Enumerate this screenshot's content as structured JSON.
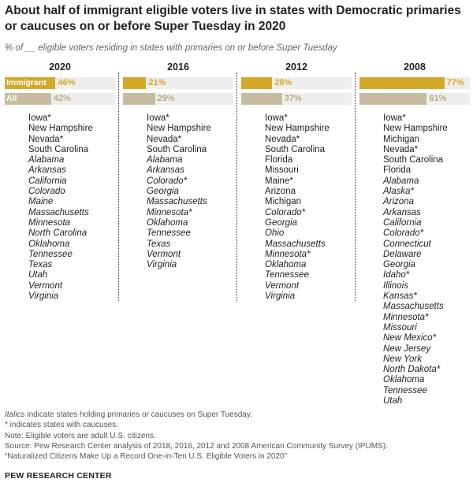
{
  "title": "About half of immigrant eligible voters live in states with Democratic primaries or caucuses on or before Super Tuesday in 2020",
  "subtitle": "% of __ eligible voters residing in states with primaries on or before Super Tuesday",
  "colors": {
    "immigrant": "#d4a929",
    "all": "#c7bca1",
    "immigrant_text": "#d4a929",
    "all_text": "#b5aa8f"
  },
  "chart_data": {
    "type": "bar",
    "series_labels": {
      "immigrant": "Immigrant",
      "all": "All"
    },
    "xlim": [
      0,
      100
    ],
    "panels": [
      {
        "year": "2020",
        "immigrant": 46,
        "all": 42,
        "immigrant_label": "46%",
        "all_label": "42%",
        "states": [
          {
            "name": "Iowa*",
            "italic": false
          },
          {
            "name": "New Hampshire",
            "italic": false
          },
          {
            "name": "Nevada*",
            "italic": false
          },
          {
            "name": "South Carolina",
            "italic": false
          },
          {
            "name": "Alabama",
            "italic": true
          },
          {
            "name": "Arkansas",
            "italic": true
          },
          {
            "name": "California",
            "italic": true
          },
          {
            "name": "Colorado",
            "italic": true
          },
          {
            "name": "Maine",
            "italic": true
          },
          {
            "name": "Massachusetts",
            "italic": true
          },
          {
            "name": "Minnesota",
            "italic": true
          },
          {
            "name": "North Carolina",
            "italic": true
          },
          {
            "name": "Oklahoma",
            "italic": true
          },
          {
            "name": "Tennessee",
            "italic": true
          },
          {
            "name": "Texas",
            "italic": true
          },
          {
            "name": "Utah",
            "italic": true
          },
          {
            "name": "Vermont",
            "italic": true
          },
          {
            "name": "Virginia",
            "italic": true
          }
        ]
      },
      {
        "year": "2016",
        "immigrant": 21,
        "all": 29,
        "immigrant_label": "21%",
        "all_label": "29%",
        "states": [
          {
            "name": "Iowa*",
            "italic": false
          },
          {
            "name": "New Hampshire",
            "italic": false
          },
          {
            "name": "Nevada*",
            "italic": false
          },
          {
            "name": "South Carolina",
            "italic": false
          },
          {
            "name": "Alabama",
            "italic": true
          },
          {
            "name": "Arkansas",
            "italic": true
          },
          {
            "name": "Colorado*",
            "italic": true
          },
          {
            "name": "Georgia",
            "italic": true
          },
          {
            "name": "Massachusetts",
            "italic": true
          },
          {
            "name": "Minnesota*",
            "italic": true
          },
          {
            "name": "Oklahoma",
            "italic": true
          },
          {
            "name": "Tennessee",
            "italic": true
          },
          {
            "name": "Texas",
            "italic": true
          },
          {
            "name": "Vermont",
            "italic": true
          },
          {
            "name": "Virginia",
            "italic": true
          }
        ]
      },
      {
        "year": "2012",
        "immigrant": 28,
        "all": 37,
        "immigrant_label": "28%",
        "all_label": "37%",
        "states": [
          {
            "name": "Iowa*",
            "italic": false
          },
          {
            "name": "New Hampshire",
            "italic": false
          },
          {
            "name": "Nevada*",
            "italic": false
          },
          {
            "name": "South Carolina",
            "italic": false
          },
          {
            "name": "Florida",
            "italic": false
          },
          {
            "name": "Missouri",
            "italic": false
          },
          {
            "name": "Maine*",
            "italic": false
          },
          {
            "name": "Arizona",
            "italic": false
          },
          {
            "name": "Michigan",
            "italic": false
          },
          {
            "name": "Colorado*",
            "italic": true
          },
          {
            "name": "Georgia",
            "italic": true
          },
          {
            "name": "Ohio",
            "italic": true
          },
          {
            "name": "Massachusetts",
            "italic": true
          },
          {
            "name": "Minnesota*",
            "italic": true
          },
          {
            "name": "Oklahoma",
            "italic": true
          },
          {
            "name": "Tennessee",
            "italic": true
          },
          {
            "name": "Vermont",
            "italic": true
          },
          {
            "name": "Virginia",
            "italic": true
          }
        ]
      },
      {
        "year": "2008",
        "immigrant": 77,
        "all": 61,
        "immigrant_label": "77%",
        "all_label": "61%",
        "states": [
          {
            "name": "Iowa*",
            "italic": false
          },
          {
            "name": "New Hampshire",
            "italic": false
          },
          {
            "name": "Michigan",
            "italic": false
          },
          {
            "name": "Nevada*",
            "italic": false
          },
          {
            "name": "South Carolina",
            "italic": false
          },
          {
            "name": "Florida",
            "italic": false
          },
          {
            "name": "Alabama",
            "italic": true
          },
          {
            "name": "Alaska*",
            "italic": true
          },
          {
            "name": "Arizona",
            "italic": true
          },
          {
            "name": "Arkansas",
            "italic": true
          },
          {
            "name": "California",
            "italic": true
          },
          {
            "name": "Colorado*",
            "italic": true
          },
          {
            "name": "Connecticut",
            "italic": true
          },
          {
            "name": "Delaware",
            "italic": true
          },
          {
            "name": "Georgia",
            "italic": true
          },
          {
            "name": "Idaho*",
            "italic": true
          },
          {
            "name": "Illinois",
            "italic": true
          },
          {
            "name": "Kansas*",
            "italic": true
          },
          {
            "name": "Massachusetts",
            "italic": true
          },
          {
            "name": "Minnesota*",
            "italic": true
          },
          {
            "name": "Missouri",
            "italic": true
          },
          {
            "name": "New Mexico*",
            "italic": true
          },
          {
            "name": "New Jersey",
            "italic": true
          },
          {
            "name": "New York",
            "italic": true
          },
          {
            "name": "North Dakota*",
            "italic": true
          },
          {
            "name": "Oklahoma",
            "italic": true
          },
          {
            "name": "Tennessee",
            "italic": true
          },
          {
            "name": "Utah",
            "italic": true
          }
        ]
      }
    ]
  },
  "notes": {
    "line1_italic": "Italics",
    "line1_rest": " indicate states holding primaries or caucuses on Super Tuesday.",
    "line2": "* indicates states with caucuses.",
    "line3": "Note: Eligible voters are adult U.S. citizens.",
    "line4": "Source: Pew Research Center analysis of 2018, 2016, 2012 and 2008 American Community Survey (IPUMS).",
    "line5": "“Naturalized Citizens Make Up a Record One-in-Ten U.S. Eligible Voters in 2020”"
  },
  "org": "PEW RESEARCH CENTER"
}
